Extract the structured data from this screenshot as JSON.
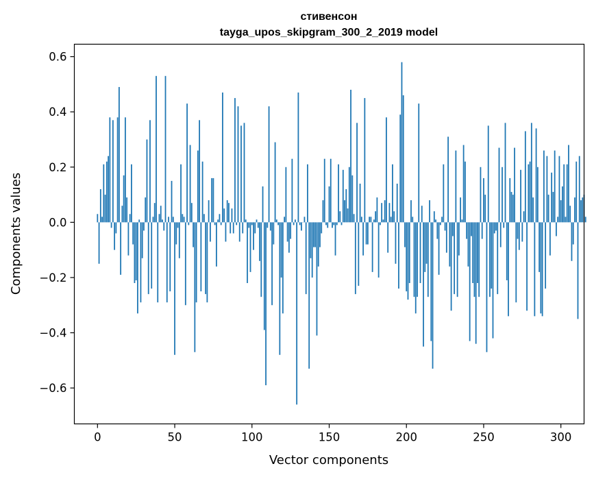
{
  "chart_data": {
    "type": "bar",
    "title_line1": "стивенсон",
    "title_line2": "tayga_upos_skipgram_300_2_2019 model",
    "xlabel": "Vector components",
    "ylabel": "Components values",
    "xlim": [
      -15,
      315
    ],
    "ylim": [
      -0.73,
      0.645
    ],
    "bar_color": "#1f77b4",
    "x_ticks": [
      {
        "value": 0,
        "label": "0"
      },
      {
        "value": 50,
        "label": "50"
      },
      {
        "value": 100,
        "label": "100"
      },
      {
        "value": 150,
        "label": "150"
      },
      {
        "value": 200,
        "label": "200"
      },
      {
        "value": 250,
        "label": "250"
      },
      {
        "value": 300,
        "label": "300"
      }
    ],
    "y_ticks": [
      {
        "value": -0.6,
        "label": "−0.6"
      },
      {
        "value": -0.4,
        "label": "−0.4"
      },
      {
        "value": -0.2,
        "label": "−0.2"
      },
      {
        "value": 0.0,
        "label": "0.0"
      },
      {
        "value": 0.2,
        "label": "0.2"
      },
      {
        "value": 0.4,
        "label": "0.4"
      },
      {
        "value": 0.6,
        "label": "0.6"
      }
    ],
    "values": [
      0.03,
      -0.15,
      0.12,
      0.02,
      0.21,
      0.1,
      0.22,
      0.24,
      0.38,
      -0.02,
      0.37,
      -0.1,
      -0.04,
      0.38,
      0.49,
      -0.19,
      0.06,
      0.17,
      0.38,
      0.09,
      -0.12,
      0.03,
      0.21,
      -0.08,
      -0.22,
      -0.21,
      -0.33,
      0.01,
      -0.29,
      -0.13,
      -0.03,
      0.09,
      0.3,
      -0.26,
      0.37,
      -0.24,
      0.02,
      0.07,
      0.53,
      -0.29,
      0.03,
      0.06,
      0.01,
      -0.03,
      0.53,
      -0.29,
      0.02,
      -0.25,
      0.15,
      0.02,
      -0.48,
      -0.08,
      -0.02,
      -0.13,
      0.21,
      0.03,
      0.02,
      -0.3,
      0.43,
      -0.01,
      0.28,
      0.07,
      -0.09,
      -0.47,
      -0.29,
      0.26,
      0.37,
      -0.25,
      0.22,
      0.03,
      -0.26,
      -0.29,
      0.08,
      -0.07,
      0.16,
      0.16,
      -0.01,
      -0.16,
      0.01,
      0.03,
      -0.01,
      0.47,
      0.05,
      -0.07,
      0.08,
      0.07,
      -0.04,
      0.05,
      -0.04,
      0.45,
      -0.01,
      0.42,
      -0.07,
      0.35,
      -0.04,
      0.36,
      0.01,
      -0.22,
      -0.02,
      -0.18,
      -0.01,
      -0.1,
      -0.04,
      0.01,
      -0.02,
      -0.14,
      -0.27,
      0.13,
      -0.39,
      -0.59,
      -0.02,
      0.42,
      -0.03,
      -0.3,
      -0.08,
      0.29,
      0.01,
      -0.01,
      -0.48,
      -0.2,
      -0.33,
      0.02,
      0.2,
      -0.07,
      -0.11,
      -0.06,
      0.23,
      -0.01,
      0.01,
      -0.66,
      0.47,
      -0.01,
      -0.03,
      0.0,
      0.02,
      -0.26,
      0.21,
      -0.53,
      -0.13,
      -0.2,
      -0.09,
      -0.09,
      -0.41,
      -0.16,
      -0.09,
      -0.04,
      0.08,
      0.23,
      -0.01,
      -0.02,
      0.13,
      0.23,
      -0.02,
      -0.01,
      -0.12,
      -0.01,
      0.21,
      0.04,
      -0.01,
      0.19,
      0.08,
      0.12,
      0.05,
      0.2,
      0.48,
      0.17,
      0.03,
      -0.26,
      0.36,
      -0.23,
      0.14,
      0.02,
      -0.12,
      0.45,
      -0.08,
      -0.08,
      0.02,
      0.02,
      -0.18,
      0.01,
      0.04,
      0.09,
      -0.2,
      -0.01,
      0.07,
      0.01,
      0.08,
      0.38,
      -0.11,
      0.07,
      0.02,
      0.21,
      0.04,
      -0.15,
      0.14,
      -0.24,
      0.39,
      0.58,
      0.46,
      -0.09,
      -0.25,
      -0.28,
      -0.22,
      0.08,
      0.02,
      -0.27,
      -0.33,
      -0.27,
      0.43,
      -0.22,
      0.06,
      -0.45,
      -0.18,
      -0.15,
      -0.27,
      0.08,
      -0.43,
      -0.53,
      0.04,
      0.01,
      -0.06,
      -0.19,
      -0.01,
      0.02,
      0.21,
      -0.03,
      -0.11,
      0.31,
      -0.16,
      -0.32,
      -0.05,
      -0.26,
      0.26,
      -0.27,
      -0.12,
      0.09,
      0.01,
      0.28,
      0.22,
      -0.06,
      -0.16,
      -0.43,
      -0.05,
      -0.22,
      -0.27,
      -0.44,
      -0.22,
      -0.27,
      0.2,
      -0.06,
      0.16,
      0.1,
      -0.47,
      0.35,
      -0.27,
      -0.24,
      -0.42,
      -0.04,
      -0.03,
      -0.26,
      0.27,
      -0.09,
      0.2,
      -0.02,
      0.36,
      -0.21,
      -0.34,
      0.16,
      0.11,
      0.1,
      0.27,
      -0.29,
      -0.06,
      -0.1,
      0.19,
      -0.07,
      0.04,
      0.33,
      -0.32,
      0.21,
      0.22,
      0.36,
      0.09,
      -0.34,
      0.34,
      0.2,
      -0.18,
      -0.33,
      -0.34,
      0.26,
      -0.24,
      0.24,
      0.1,
      -0.12,
      0.18,
      0.11,
      0.26,
      -0.05,
      0.02,
      0.24,
      0.08,
      0.13,
      0.21,
      0.02,
      0.21,
      0.28,
      0.06,
      -0.14,
      -0.08,
      0.09,
      0.22,
      -0.35,
      0.24,
      0.08,
      0.09,
      0.1,
      0.02
    ]
  }
}
